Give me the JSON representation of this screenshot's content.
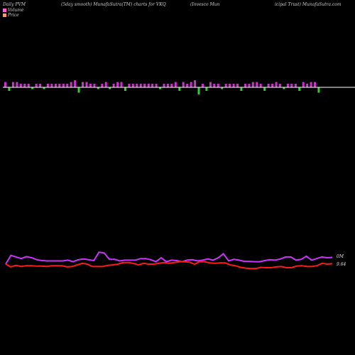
{
  "header": {
    "left": "Daily PVM",
    "middle": "(5day smooth) MunafaSutra(TM) charts for VKQ",
    "right_a": "(Invesco  Mun",
    "right_b": "icipal Trust) MunafaSutra.com"
  },
  "legend": [
    {
      "label": "Volume",
      "color": "#ff66cc"
    },
    {
      "label": "Price",
      "color": "#ff9966"
    }
  ],
  "colors": {
    "volume_bar": "#cc33cc",
    "volume_bar_down": "#33cc33",
    "volume_line": "#cc33ff",
    "price_line": "#ff1a1a",
    "baseline": "#ffffff"
  },
  "chart_data": {
    "type": "bar",
    "volume_panel": {
      "bars": [
        3,
        -2,
        3,
        3,
        2,
        2,
        2,
        -1,
        2,
        2,
        -1,
        2,
        2,
        2,
        2,
        2,
        2,
        3,
        4,
        -3,
        3,
        3,
        2,
        2,
        -1,
        2,
        3,
        -1,
        2,
        3,
        3,
        -2,
        2,
        2,
        2,
        2,
        2,
        2,
        2,
        2,
        -1,
        2,
        2,
        2,
        3,
        -2,
        3,
        2,
        3,
        4,
        -4,
        2,
        -2,
        3,
        2,
        2,
        -1,
        2,
        2,
        2,
        2,
        -2,
        2,
        2,
        3,
        3,
        2,
        -2,
        2,
        2,
        3,
        2,
        -1,
        2,
        2,
        2,
        -2,
        3,
        2,
        3,
        3,
        -3
      ]
    },
    "lines": {
      "axis_label_top": "0M",
      "axis_label_price": "9.64",
      "volume_line": [
        5.0,
        7.2,
        6.8,
        6.4,
        6.9,
        6.6,
        6.1,
        5.9,
        5.8,
        5.8,
        5.8,
        5.8,
        6.0,
        5.6,
        6.1,
        6.3,
        6.1,
        5.9,
        8.0,
        7.8,
        6.2,
        6.2,
        5.8,
        6.0,
        6.0,
        6.0,
        6.4,
        6.4,
        6.1,
        5.6,
        6.6,
        5.6,
        6.0,
        5.9,
        5.6,
        6.0,
        6.1,
        5.8,
        6.0,
        6.3,
        6.0,
        6.6,
        7.6,
        5.8,
        6.2,
        6.0,
        5.7,
        5.7,
        5.6,
        5.6,
        5.9,
        6.1,
        6.0,
        6.3,
        6.8,
        6.8,
        6.0,
        6.2,
        7.0,
        6.0,
        6.4,
        6.8,
        6.6,
        6.7
      ],
      "price_line": [
        5.0,
        4.3,
        4.7,
        4.4,
        4.6,
        4.6,
        4.5,
        4.5,
        4.4,
        4.6,
        4.6,
        4.6,
        4.3,
        4.4,
        4.8,
        5.2,
        5.0,
        4.4,
        4.4,
        4.4,
        4.7,
        4.8,
        5.0,
        5.4,
        5.4,
        5.2,
        4.8,
        5.2,
        5.0,
        5.0,
        5.2,
        5.4,
        5.2,
        5.4,
        5.6,
        5.6,
        5.5,
        5.0,
        5.6,
        5.6,
        5.3,
        5.2,
        5.3,
        5.3,
        4.8,
        4.6,
        4.2,
        4.0,
        3.9,
        3.9,
        4.2,
        4.1,
        4.1,
        4.3,
        4.4,
        4.1,
        4.1,
        4.5,
        4.6,
        4.4,
        4.4,
        4.6,
        5.2,
        5.0,
        5.1
      ]
    }
  }
}
